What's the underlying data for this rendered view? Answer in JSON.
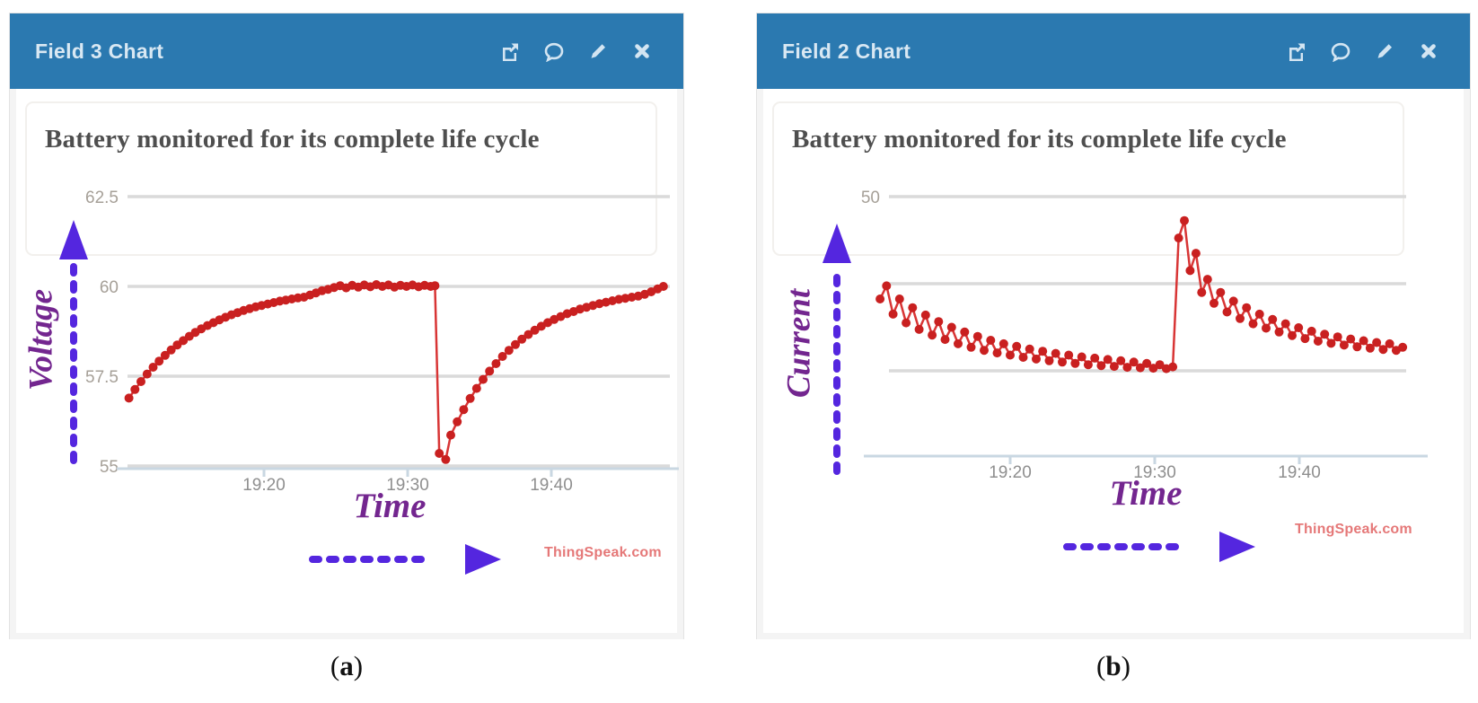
{
  "colors": {
    "header": "#2b79b0",
    "header_text": "#d9e8f3",
    "icon": "#d3e5f2",
    "gridline": "#dadada",
    "axis": "#c9d7e2",
    "series": "#c92020",
    "line": "#d83535",
    "arrow": "#5426df",
    "label": "#73268f",
    "watermark": "#e57878",
    "title": "#4e4e4e"
  },
  "panels": [
    {
      "window_title": "Field 3 Chart",
      "toolbar": [
        "external-link",
        "comment",
        "edit",
        "close"
      ],
      "caption": {
        "open": "(",
        "letter": "a",
        "close": ")"
      }
    },
    {
      "window_title": "Field 2 Chart",
      "toolbar": [
        "external-link",
        "comment",
        "edit",
        "close"
      ],
      "caption": {
        "open": "(",
        "letter": "b",
        "close": ")"
      }
    }
  ],
  "chart_data": [
    {
      "type": "line",
      "title": "Battery monitored for its complete life cycle",
      "xlabel": "Time",
      "ylabel": "Voltage",
      "watermark": "ThingSpeak.com",
      "x_ticks": [
        "19:20",
        "19:30",
        "19:40"
      ],
      "x_tick_minutes": [
        20,
        30,
        40
      ],
      "x_range_minutes": [
        10.5,
        48.0
      ],
      "ylim": [
        54.5,
        63.0
      ],
      "grid": true,
      "legend": "none",
      "y_gridlines": [
        {
          "value": 62.5,
          "label": "62.5"
        },
        {
          "value": 60,
          "label": "60"
        },
        {
          "value": 57.5,
          "label": "57.5"
        },
        {
          "value": 55,
          "label": "55"
        }
      ],
      "series": [
        {
          "name": "field3-voltage",
          "points": [
            [
              10.6,
              56.89
            ],
            [
              11.02,
              57.13
            ],
            [
              11.44,
              57.35
            ],
            [
              11.86,
              57.56
            ],
            [
              12.28,
              57.75
            ],
            [
              12.7,
              57.92
            ],
            [
              13.12,
              58.08
            ],
            [
              13.54,
              58.23
            ],
            [
              13.96,
              58.37
            ],
            [
              14.38,
              58.49
            ],
            [
              14.8,
              58.61
            ],
            [
              15.22,
              58.72
            ],
            [
              15.64,
              58.82
            ],
            [
              16.06,
              58.91
            ],
            [
              16.48,
              58.99
            ],
            [
              16.9,
              59.07
            ],
            [
              17.32,
              59.14
            ],
            [
              17.74,
              59.21
            ],
            [
              18.16,
              59.27
            ],
            [
              18.58,
              59.33
            ],
            [
              19.0,
              59.38
            ],
            [
              19.42,
              59.43
            ],
            [
              19.84,
              59.47
            ],
            [
              20.26,
              59.51
            ],
            [
              20.68,
              59.55
            ],
            [
              21.1,
              59.59
            ],
            [
              21.52,
              59.62
            ],
            [
              21.94,
              59.65
            ],
            [
              22.36,
              59.68
            ],
            [
              22.78,
              59.7
            ],
            [
              23.2,
              59.76
            ],
            [
              23.62,
              59.82
            ],
            [
              24.04,
              59.88
            ],
            [
              24.46,
              59.92
            ],
            [
              24.88,
              59.97
            ],
            [
              25.3,
              60.02
            ],
            [
              25.72,
              59.96
            ],
            [
              26.14,
              60.03
            ],
            [
              26.56,
              59.98
            ],
            [
              26.98,
              60.04
            ],
            [
              27.4,
              59.99
            ],
            [
              27.82,
              60.05
            ],
            [
              28.24,
              60.0
            ],
            [
              28.66,
              60.04
            ],
            [
              29.08,
              59.98
            ],
            [
              29.5,
              60.03
            ],
            [
              29.92,
              60.0
            ],
            [
              30.34,
              60.04
            ],
            [
              30.76,
              59.99
            ],
            [
              31.18,
              60.03
            ],
            [
              31.6,
              60.0
            ],
            [
              31.9,
              60.02
            ],
            [
              32.2,
              55.35
            ],
            [
              32.65,
              55.18
            ],
            [
              33.0,
              55.86
            ],
            [
              33.45,
              56.23
            ],
            [
              33.9,
              56.57
            ],
            [
              34.35,
              56.88
            ],
            [
              34.8,
              57.16
            ],
            [
              35.25,
              57.41
            ],
            [
              35.7,
              57.64
            ],
            [
              36.15,
              57.85
            ],
            [
              36.6,
              58.05
            ],
            [
              37.05,
              58.22
            ],
            [
              37.5,
              58.38
            ],
            [
              37.95,
              58.53
            ],
            [
              38.4,
              58.66
            ],
            [
              38.85,
              58.78
            ],
            [
              39.3,
              58.89
            ],
            [
              39.75,
              58.99
            ],
            [
              40.2,
              59.08
            ],
            [
              40.65,
              59.16
            ],
            [
              41.1,
              59.24
            ],
            [
              41.55,
              59.3
            ],
            [
              42.0,
              59.37
            ],
            [
              42.45,
              59.42
            ],
            [
              42.9,
              59.47
            ],
            [
              43.35,
              59.52
            ],
            [
              43.8,
              59.56
            ],
            [
              44.25,
              59.6
            ],
            [
              44.7,
              59.64
            ],
            [
              45.15,
              59.67
            ],
            [
              45.6,
              59.7
            ],
            [
              46.05,
              59.73
            ],
            [
              46.5,
              59.78
            ],
            [
              46.95,
              59.85
            ],
            [
              47.4,
              59.93
            ],
            [
              47.8,
              60.0
            ]
          ]
        }
      ]
    },
    {
      "type": "line",
      "title": "Battery monitored for its complete life cycle",
      "xlabel": "Time",
      "ylabel": "Current",
      "watermark": "ThingSpeak.com",
      "x_ticks": [
        "19:20",
        "19:30",
        "19:40"
      ],
      "x_tick_minutes": [
        20,
        30,
        40
      ],
      "x_range_minutes": [
        10.5,
        48.0
      ],
      "ylim": [
        0,
        55
      ],
      "grid": true,
      "legend": "none",
      "y_gridlines": [
        {
          "value": 50,
          "label": "50"
        },
        {
          "value": 30,
          "label": ""
        },
        {
          "value": 10,
          "label": ""
        }
      ],
      "series": [
        {
          "name": "field2-current",
          "points": [
            [
              11.0,
              26.5
            ],
            [
              11.45,
              29.5
            ],
            [
              11.9,
              23.0
            ],
            [
              12.35,
              26.5
            ],
            [
              12.8,
              21.0
            ],
            [
              13.25,
              24.5
            ],
            [
              13.7,
              19.5
            ],
            [
              14.15,
              22.8
            ],
            [
              14.6,
              18.2
            ],
            [
              15.05,
              21.3
            ],
            [
              15.5,
              17.2
            ],
            [
              15.95,
              20.0
            ],
            [
              16.4,
              16.2
            ],
            [
              16.85,
              18.9
            ],
            [
              17.3,
              15.4
            ],
            [
              17.75,
              17.9
            ],
            [
              18.2,
              14.7
            ],
            [
              18.65,
              17.0
            ],
            [
              19.1,
              14.1
            ],
            [
              19.55,
              16.2
            ],
            [
              20.0,
              13.6
            ],
            [
              20.45,
              15.6
            ],
            [
              20.9,
              13.1
            ],
            [
              21.35,
              15.0
            ],
            [
              21.8,
              12.7
            ],
            [
              22.25,
              14.5
            ],
            [
              22.7,
              12.3
            ],
            [
              23.15,
              14.0
            ],
            [
              23.6,
              12.0
            ],
            [
              24.05,
              13.6
            ],
            [
              24.5,
              11.7
            ],
            [
              24.95,
              13.2
            ],
            [
              25.4,
              11.4
            ],
            [
              25.85,
              12.9
            ],
            [
              26.3,
              11.2
            ],
            [
              26.75,
              12.6
            ],
            [
              27.2,
              11.0
            ],
            [
              27.65,
              12.3
            ],
            [
              28.1,
              10.8
            ],
            [
              28.55,
              12.0
            ],
            [
              29.0,
              10.7
            ],
            [
              29.45,
              11.7
            ],
            [
              29.9,
              10.6
            ],
            [
              30.35,
              11.4
            ],
            [
              30.8,
              10.5
            ],
            [
              31.25,
              10.9
            ],
            [
              31.65,
              40.5
            ],
            [
              32.05,
              44.5
            ],
            [
              32.45,
              33.0
            ],
            [
              32.85,
              37.0
            ],
            [
              33.25,
              28.0
            ],
            [
              33.65,
              31.0
            ],
            [
              34.1,
              25.5
            ],
            [
              34.55,
              28.0
            ],
            [
              35.0,
              23.5
            ],
            [
              35.45,
              26.0
            ],
            [
              35.9,
              22.0
            ],
            [
              36.35,
              24.5
            ],
            [
              36.8,
              20.8
            ],
            [
              37.25,
              23.0
            ],
            [
              37.7,
              19.8
            ],
            [
              38.15,
              21.8
            ],
            [
              38.6,
              18.9
            ],
            [
              39.05,
              20.8
            ],
            [
              39.5,
              18.1
            ],
            [
              39.95,
              19.9
            ],
            [
              40.4,
              17.4
            ],
            [
              40.85,
              19.1
            ],
            [
              41.3,
              16.8
            ],
            [
              41.75,
              18.4
            ],
            [
              42.2,
              16.3
            ],
            [
              42.65,
              17.8
            ],
            [
              43.1,
              15.9
            ],
            [
              43.55,
              17.3
            ],
            [
              44.0,
              15.5
            ],
            [
              44.45,
              16.9
            ],
            [
              44.9,
              15.2
            ],
            [
              45.35,
              16.5
            ],
            [
              45.8,
              14.9
            ],
            [
              46.25,
              16.2
            ],
            [
              46.7,
              14.7
            ],
            [
              47.15,
              15.4
            ]
          ]
        }
      ]
    }
  ]
}
